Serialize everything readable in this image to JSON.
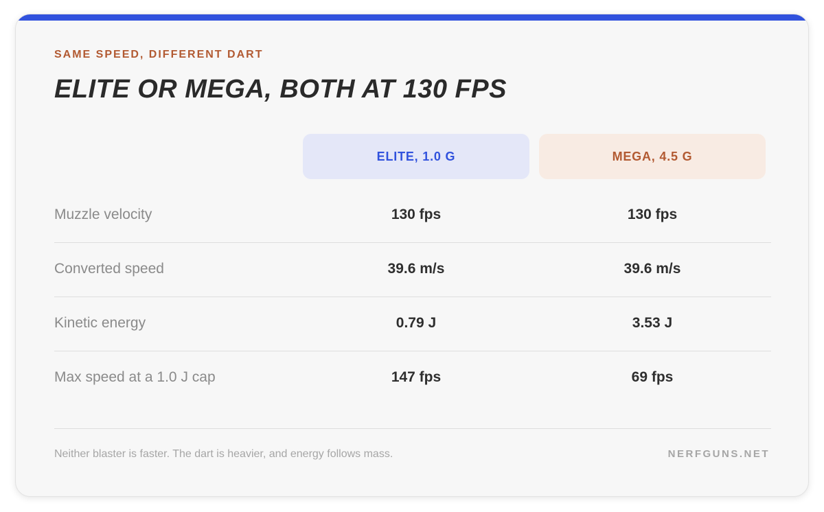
{
  "eyebrow": "SAME SPEED, DIFFERENT DART",
  "title": "ELITE OR MEGA, BOTH AT 130 FPS",
  "columns": {
    "elite": "ELITE, 1.0 G",
    "mega": "MEGA, 4.5 G"
  },
  "rows": [
    {
      "label": "Muzzle velocity",
      "elite": "130 fps",
      "mega": "130 fps"
    },
    {
      "label": "Converted speed",
      "elite": "39.6 m/s",
      "mega": "39.6 m/s"
    },
    {
      "label": "Kinetic energy",
      "elite": "0.79 J",
      "mega": "3.53 J"
    },
    {
      "label": "Max speed at a 1.0 J cap",
      "elite": "147 fps",
      "mega": "69 fps"
    }
  ],
  "footer": {
    "note": "Neither blaster is faster. The dart is heavier, and energy follows mass.",
    "site": "NERFGUNS.NET"
  },
  "colors": {
    "accent_blue": "#3152dd",
    "accent_orange": "#b25a32",
    "elite_header_bg": "#e4e7f8",
    "mega_header_bg": "#f8ebe3"
  }
}
